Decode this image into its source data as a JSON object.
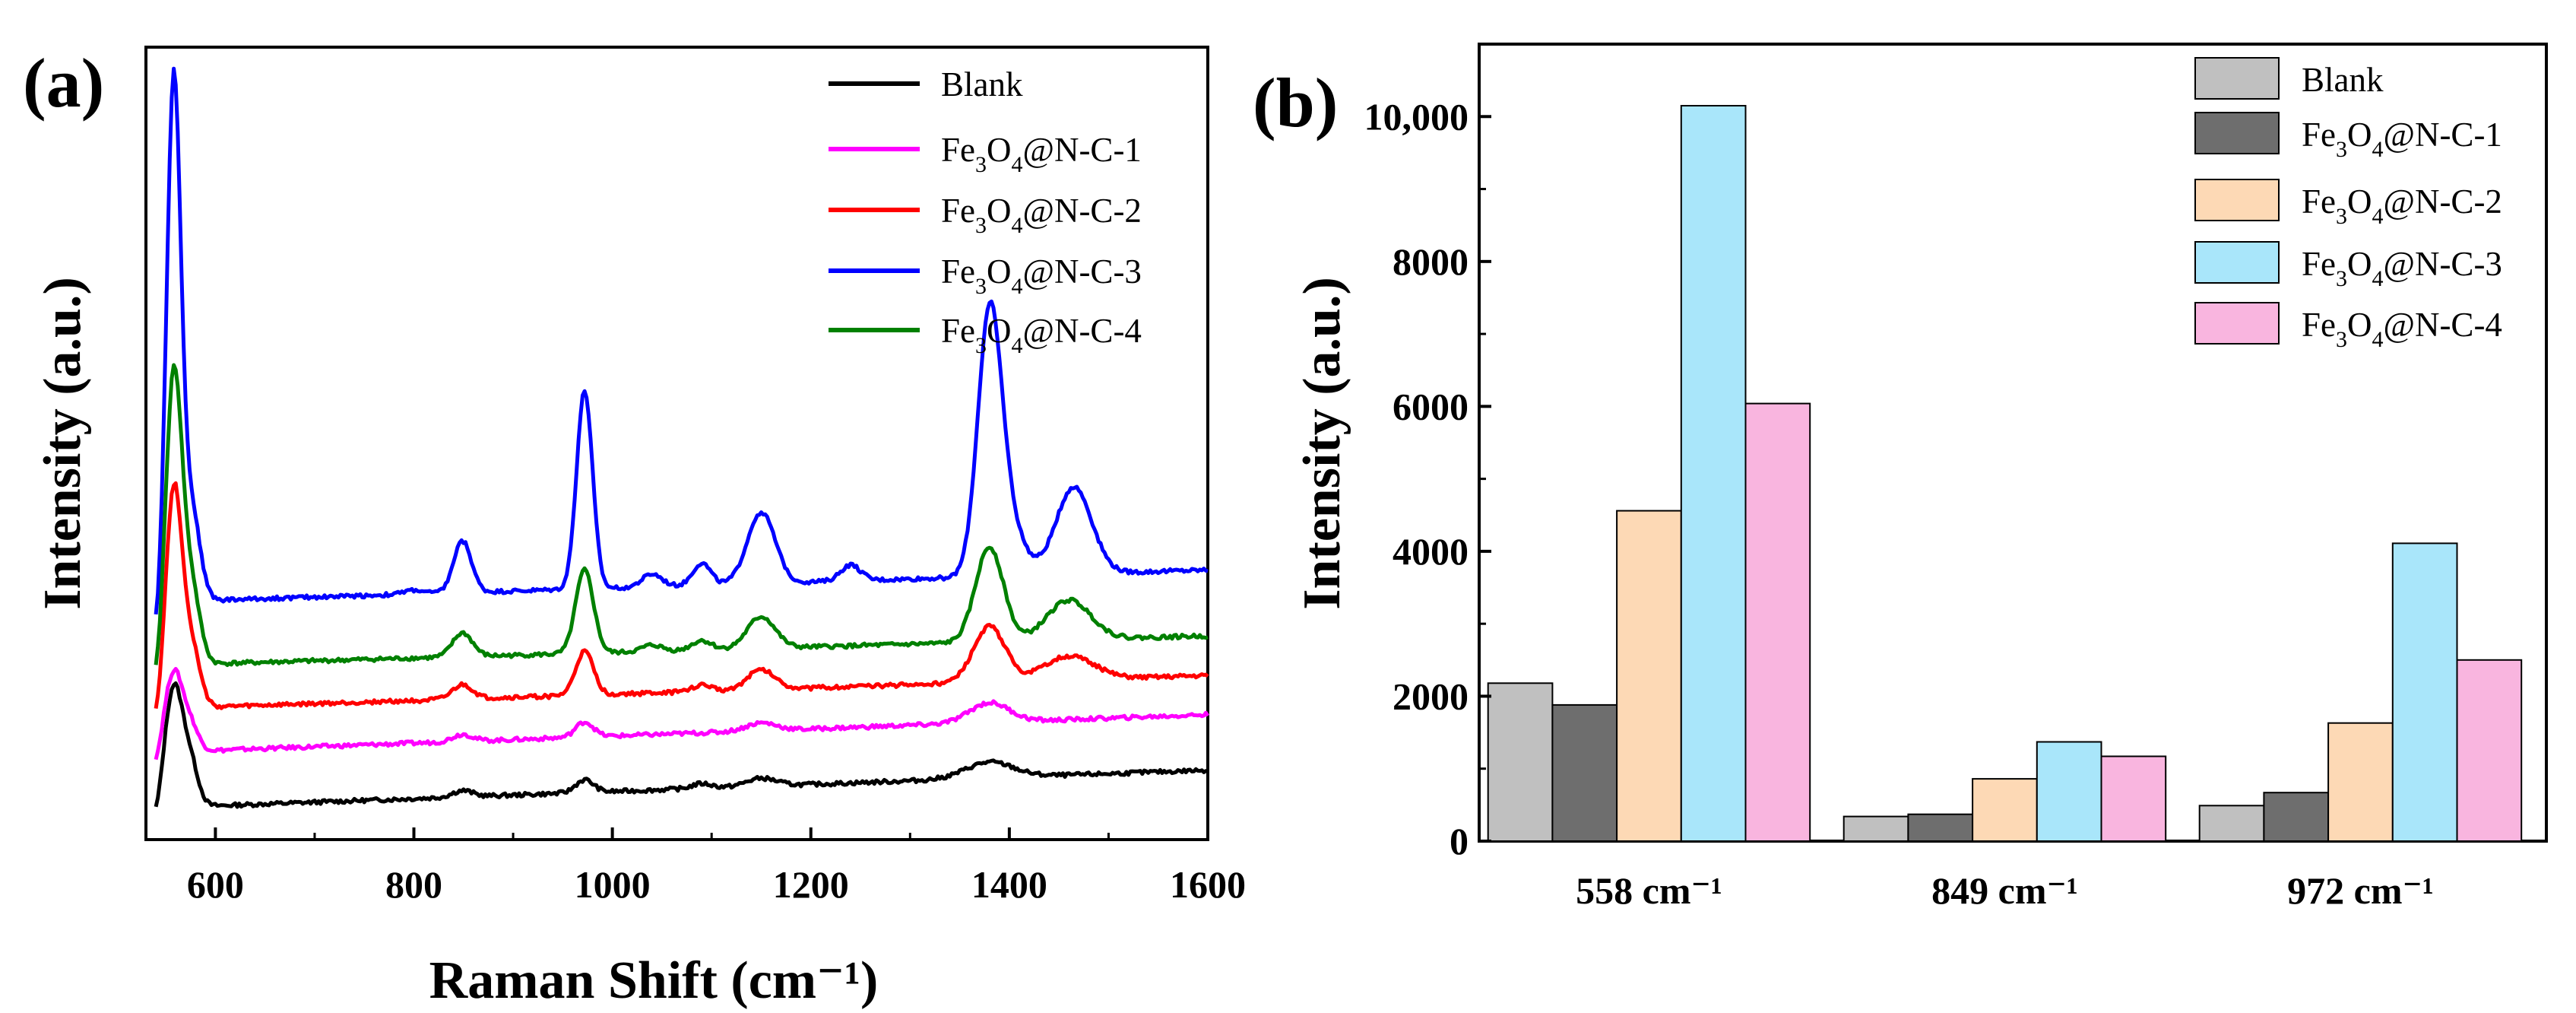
{
  "figure": {
    "panel_a_label": "(a)",
    "panel_b_label": "(b)"
  },
  "legend": {
    "blank": "Blank",
    "s1": {
      "pre": "Fe",
      "sub1": "3",
      "mid": "O",
      "sub2": "4",
      "post": "@N-C-1"
    },
    "s2": {
      "pre": "Fe",
      "sub1": "3",
      "mid": "O",
      "sub2": "4",
      "post": "@N-C-2"
    },
    "s3": {
      "pre": "Fe",
      "sub1": "3",
      "mid": "O",
      "sub2": "4",
      "post": "@N-C-3"
    },
    "s4": {
      "pre": "Fe",
      "sub1": "3",
      "mid": "O",
      "sub2": "4",
      "post": "@N-C-4"
    }
  },
  "colors": {
    "line_blank": "#000000",
    "line_s1": "#ff00ff",
    "line_s2": "#ff0000",
    "line_s3": "#0000ff",
    "line_s4": "#008000",
    "bar_blank": "#c0c0c0",
    "bar_s1": "#6e6e6e",
    "bar_s2": "#fdd9b5",
    "bar_s3": "#a9e6fa",
    "bar_s4": "#f9b5df"
  },
  "chart_data": [
    {
      "type": "line",
      "title": "",
      "xlabel": "Raman Shift (cm⁻¹)",
      "ylabel": "Intensity (a.u.)",
      "xlim": [
        530,
        1600
      ],
      "ylim": [
        0,
        100
      ],
      "xticks": [
        "600",
        "800",
        "1000",
        "1200",
        "1400",
        "1600"
      ],
      "xtick_values": [
        600,
        800,
        1000,
        1200,
        1400,
        1600
      ],
      "yticks_shown": false,
      "legend_position": "top-right",
      "series": [
        {
          "name": "Blank",
          "baseline": 4,
          "slope": 0.0045,
          "peaks": [
            [
              540,
              -2,
              5
            ],
            [
              558,
              15,
              9
            ],
            [
              575,
              5,
              8
            ],
            [
              849,
              0.8,
              10
            ],
            [
              972,
              1.6,
              9
            ],
            [
              1090,
              0.6,
              10
            ],
            [
              1150,
              1,
              15
            ],
            [
              1380,
              2,
              24
            ]
          ]
        },
        {
          "name": "Fe3O4@N-C-1",
          "baseline": 11,
          "slope": 0.0045,
          "peaks": [
            [
              540,
              -2,
              5
            ],
            [
              558,
              10,
              9
            ],
            [
              575,
              3,
              8
            ],
            [
              849,
              0.9,
              10
            ],
            [
              972,
              1.9,
              9
            ],
            [
              1150,
              1,
              15
            ],
            [
              1380,
              2.5,
              20
            ]
          ]
        },
        {
          "name": "Fe3O4@N-C-2",
          "baseline": 16.5,
          "slope": 0.004,
          "peaks": [
            [
              540,
              -2,
              5
            ],
            [
              558,
              27,
              8
            ],
            [
              575,
              8,
              9
            ],
            [
              849,
              1.8,
              10
            ],
            [
              972,
              5.5,
              9
            ],
            [
              1090,
              0.8,
              10
            ],
            [
              1150,
              2.5,
              14
            ],
            [
              1380,
              7,
              16
            ],
            [
              1460,
              3,
              25
            ]
          ]
        },
        {
          "name": "Fe3O4@N-C-3",
          "baseline": 30,
          "slope": 0.0038,
          "peaks": [
            [
              540,
              -4,
              4
            ],
            [
              558,
              65,
              7
            ],
            [
              575,
              12,
              9
            ],
            [
              800,
              0.5,
              10
            ],
            [
              849,
              6.5,
              9
            ],
            [
              972,
              25,
              8
            ],
            [
              1040,
              1.6,
              10
            ],
            [
              1090,
              2.8,
              9
            ],
            [
              1150,
              9,
              14
            ],
            [
              1240,
              2,
              10
            ],
            [
              1380,
              32,
              12
            ],
            [
              1400,
              6,
              15
            ],
            [
              1465,
              11,
              18
            ]
          ]
        },
        {
          "name": "Fe3O4@N-C-4",
          "baseline": 22,
          "slope": 0.0035,
          "peaks": [
            [
              540,
              -3,
              5
            ],
            [
              558,
              36,
              8
            ],
            [
              575,
              10,
              9
            ],
            [
              849,
              3,
              10
            ],
            [
              972,
              10.5,
              9
            ],
            [
              1040,
              0.8,
              10
            ],
            [
              1090,
              1.2,
              10
            ],
            [
              1150,
              4,
              14
            ],
            [
              1380,
              12,
              14
            ],
            [
              1460,
              5,
              22
            ]
          ]
        }
      ]
    },
    {
      "type": "bar",
      "title": "",
      "xlabel": "",
      "ylabel": "Intensity (a.u.)",
      "ylim": [
        0,
        11000
      ],
      "yticks": [
        "0",
        "2000",
        "4000",
        "6000",
        "8000",
        "10,000"
      ],
      "ytick_values": [
        0,
        2000,
        4000,
        6000,
        8000,
        10000
      ],
      "categories": [
        "558 cm⁻¹",
        "849 cm⁻¹",
        "972 cm⁻¹"
      ],
      "legend_position": "top-right",
      "series": [
        {
          "name": "Blank",
          "values": [
            2180,
            340,
            490
          ]
        },
        {
          "name": "Fe3O4@N-C-1",
          "values": [
            1880,
            370,
            670
          ]
        },
        {
          "name": "Fe3O4@N-C-2",
          "values": [
            4560,
            860,
            1630
          ]
        },
        {
          "name": "Fe3O4@N-C-3",
          "values": [
            10150,
            1370,
            4110
          ]
        },
        {
          "name": "Fe3O4@N-C-4",
          "values": [
            6040,
            1170,
            2500
          ]
        }
      ]
    }
  ]
}
